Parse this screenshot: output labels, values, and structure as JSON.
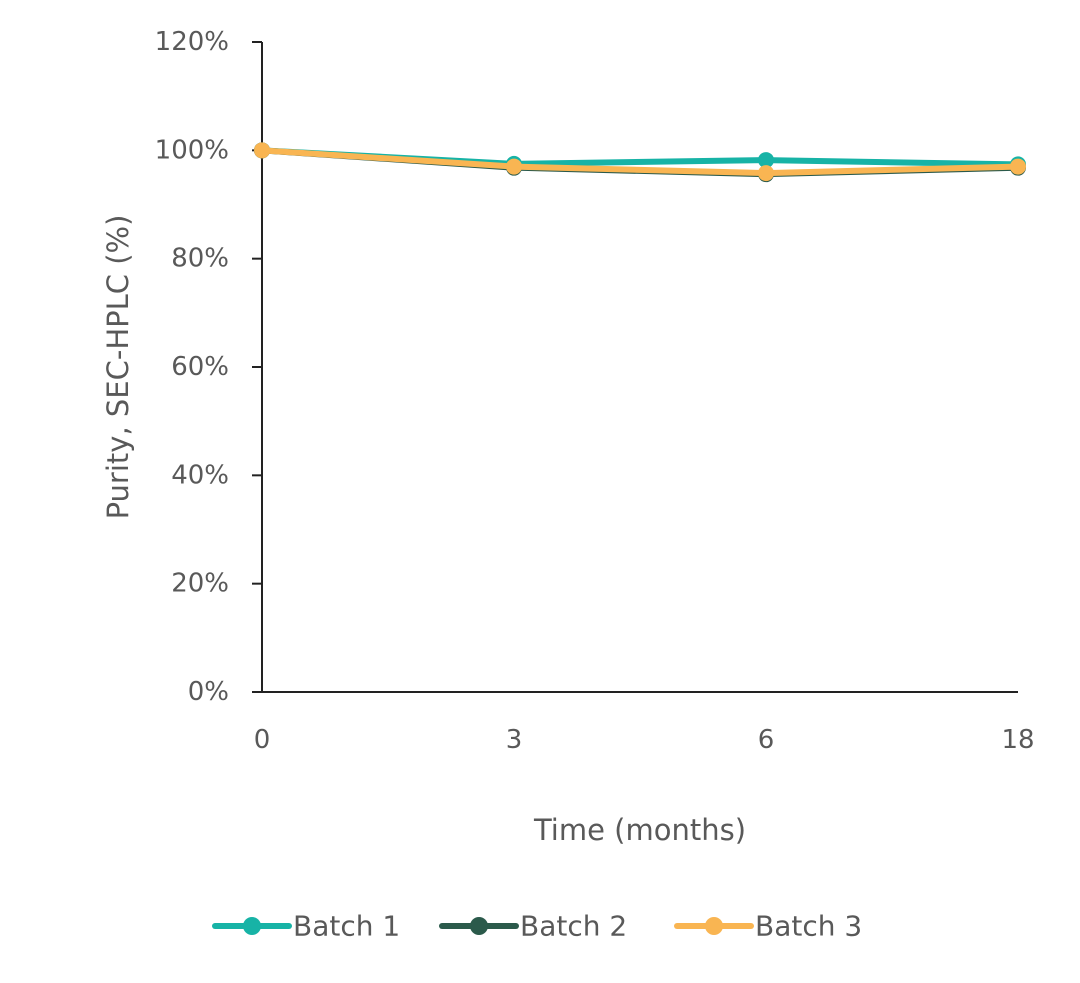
{
  "chart_data": {
    "type": "line",
    "xlabel": "Time (months)",
    "ylabel": "Purity, SEC-HPLC (%)",
    "categories": [
      "0",
      "3",
      "6",
      "18"
    ],
    "ylim": [
      0,
      120
    ],
    "yticks": [
      0,
      20,
      40,
      60,
      80,
      100,
      120
    ],
    "ytick_labels": [
      "0%",
      "20%",
      "40%",
      "60%",
      "80%",
      "100%",
      "120%"
    ],
    "grid": false,
    "legend_position": "bottom",
    "series": [
      {
        "name": "Batch 1",
        "values": [
          100,
          97.5,
          98.2,
          97.4
        ],
        "color": "#17b3a6"
      },
      {
        "name": "Batch 2",
        "values": [
          100,
          96.8,
          95.6,
          96.8
        ],
        "color": "#2b5a4b"
      },
      {
        "name": "Batch 3",
        "values": [
          100,
          97.0,
          95.8,
          97.0
        ],
        "color": "#f9b552"
      }
    ]
  }
}
